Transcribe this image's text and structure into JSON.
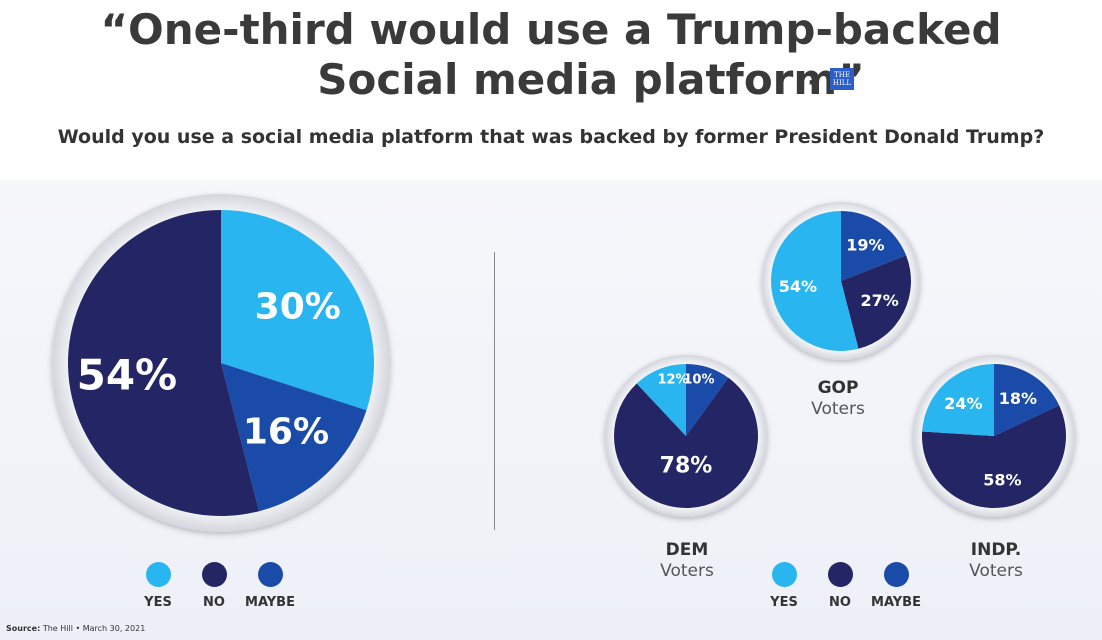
{
  "title_line1": "“One-third would use a Trump-backed",
  "title_line2": "Social media platform”",
  "title_separator": "-",
  "logo_text": "THE HILL",
  "question": "Would you use a social media platform that was backed by former President Donald Trump?",
  "colors": {
    "yes": "#29b6f0",
    "no": "#232564",
    "maybe": "#1a4ba8"
  },
  "legend": [
    {
      "key": "yes",
      "label": "YES"
    },
    {
      "key": "no",
      "label": "NO"
    },
    {
      "key": "maybe",
      "label": "MAYBE"
    }
  ],
  "source_label": "Source:",
  "source_text": "The Hill • March 30, 2021",
  "chart_data": [
    {
      "type": "pie",
      "title": "",
      "group": "",
      "group_sub": "",
      "slices": [
        {
          "key": "yes",
          "label": "YES",
          "value": 30,
          "display": "30%"
        },
        {
          "key": "maybe",
          "label": "MAYBE",
          "value": 16,
          "display": "16%"
        },
        {
          "key": "no",
          "label": "NO",
          "value": 54,
          "display": "54%"
        }
      ]
    },
    {
      "type": "pie",
      "group": "GOP",
      "group_sub": "Voters",
      "slices": [
        {
          "key": "maybe",
          "label": "MAYBE",
          "value": 19,
          "display": "19%"
        },
        {
          "key": "no",
          "label": "NO",
          "value": 27,
          "display": "27%"
        },
        {
          "key": "yes",
          "label": "YES",
          "value": 54,
          "display": "54%"
        }
      ]
    },
    {
      "type": "pie",
      "group": "DEM",
      "group_sub": "Voters",
      "slices": [
        {
          "key": "maybe",
          "label": "MAYBE",
          "value": 10,
          "display": "10%"
        },
        {
          "key": "no",
          "label": "NO",
          "value": 78,
          "display": "78%"
        },
        {
          "key": "yes",
          "label": "YES",
          "value": 12,
          "display": "12%"
        }
      ]
    },
    {
      "type": "pie",
      "group": "INDP.",
      "group_sub": "Voters",
      "slices": [
        {
          "key": "maybe",
          "label": "MAYBE",
          "value": 18,
          "display": "18%"
        },
        {
          "key": "no",
          "label": "NO",
          "value": 58,
          "display": "58%"
        },
        {
          "key": "yes",
          "label": "YES",
          "value": 24,
          "display": "24%"
        }
      ]
    }
  ]
}
